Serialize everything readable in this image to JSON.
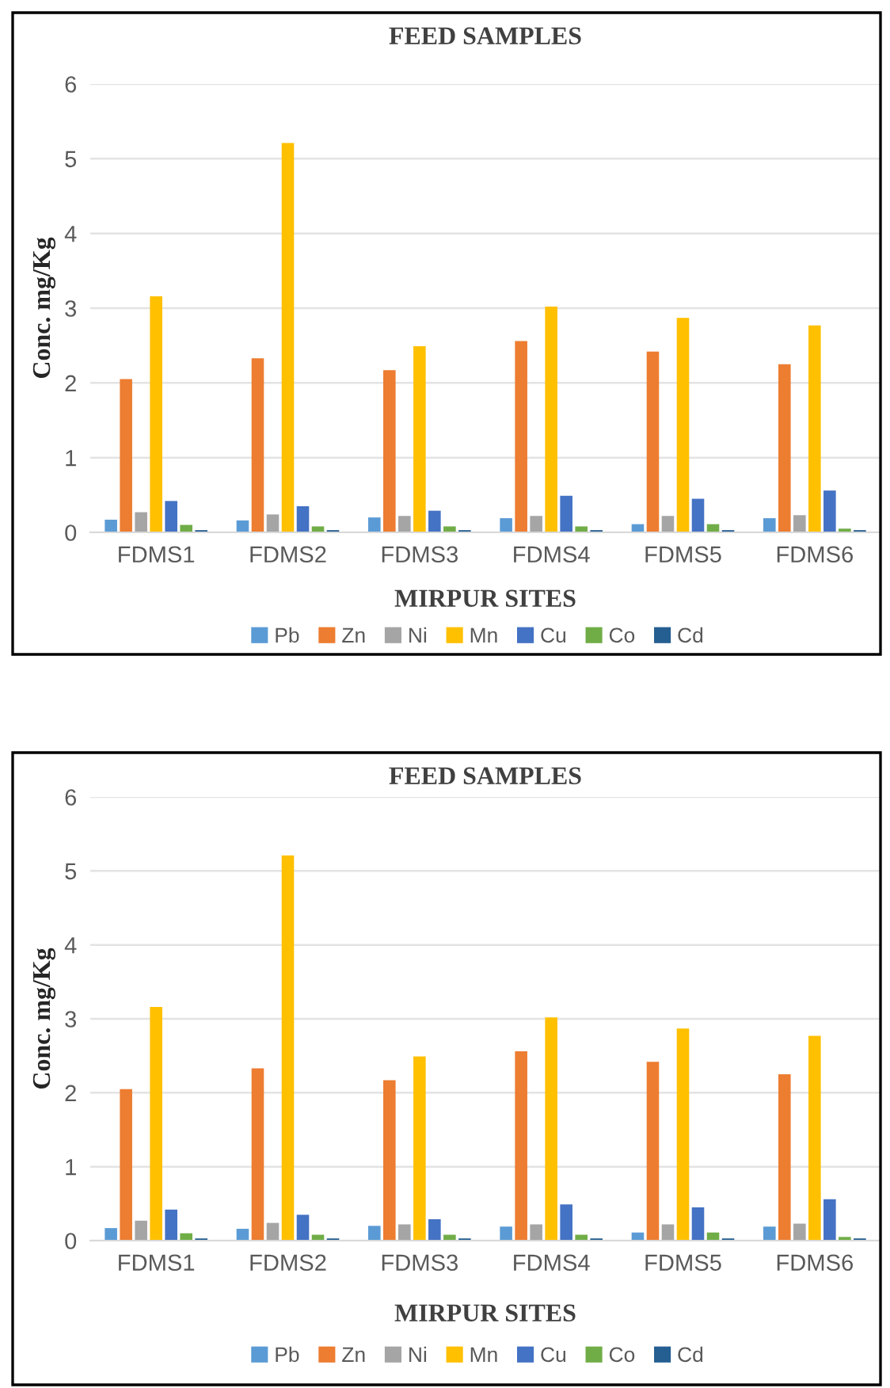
{
  "chart_data": [
    {
      "type": "bar",
      "title": "FEED SAMPLES",
      "xlabel": "MIRPUR SITES",
      "ylabel": "Conc. mg/Kg",
      "categories": [
        "FDMS1",
        "FDMS2",
        "FDMS3",
        "FDMS4",
        "FDMS5",
        "FDMS6"
      ],
      "series": [
        {
          "name": "Pb",
          "color": "#5b9bd5",
          "values": [
            0.17,
            0.16,
            0.2,
            0.19,
            0.11,
            0.19
          ]
        },
        {
          "name": "Zn",
          "color": "#ed7d31",
          "values": [
            2.05,
            2.33,
            2.17,
            2.56,
            2.42,
            2.25
          ]
        },
        {
          "name": "Ni",
          "color": "#a5a5a5",
          "values": [
            0.27,
            0.24,
            0.22,
            0.22,
            0.22,
            0.23
          ]
        },
        {
          "name": "Mn",
          "color": "#ffc000",
          "values": [
            3.16,
            5.21,
            2.49,
            3.02,
            2.87,
            2.77
          ]
        },
        {
          "name": "Cu",
          "color": "#4472c4",
          "values": [
            0.42,
            0.35,
            0.29,
            0.49,
            0.45,
            0.56
          ]
        },
        {
          "name": "Co",
          "color": "#70ad47",
          "values": [
            0.1,
            0.08,
            0.08,
            0.08,
            0.11,
            0.05
          ]
        },
        {
          "name": "Cd",
          "color": "#255e91",
          "values": [
            0.03,
            0.03,
            0.03,
            0.03,
            0.03,
            0.03
          ]
        }
      ],
      "ylim": [
        0,
        6
      ],
      "yticks": [
        0,
        1,
        2,
        3,
        4,
        5,
        6
      ],
      "grid": "y",
      "legend": "bottom"
    },
    {
      "type": "bar",
      "title": "FEED SAMPLES",
      "xlabel": "MIRPUR SITES",
      "ylabel": "Conc. mg/Kg",
      "categories": [
        "FDMS1",
        "FDMS2",
        "FDMS3",
        "FDMS4",
        "FDMS5",
        "FDMS6"
      ],
      "series": [
        {
          "name": "Pb",
          "color": "#5b9bd5",
          "values": [
            0.17,
            0.16,
            0.2,
            0.19,
            0.11,
            0.19
          ]
        },
        {
          "name": "Zn",
          "color": "#ed7d31",
          "values": [
            2.05,
            2.33,
            2.17,
            2.56,
            2.42,
            2.25
          ]
        },
        {
          "name": "Ni",
          "color": "#a5a5a5",
          "values": [
            0.27,
            0.24,
            0.22,
            0.22,
            0.22,
            0.23
          ]
        },
        {
          "name": "Mn",
          "color": "#ffc000",
          "values": [
            3.16,
            5.21,
            2.49,
            3.02,
            2.87,
            2.77
          ]
        },
        {
          "name": "Cu",
          "color": "#4472c4",
          "values": [
            0.42,
            0.35,
            0.29,
            0.49,
            0.45,
            0.56
          ]
        },
        {
          "name": "Co",
          "color": "#70ad47",
          "values": [
            0.1,
            0.08,
            0.08,
            0.08,
            0.11,
            0.05
          ]
        },
        {
          "name": "Cd",
          "color": "#255e91",
          "values": [
            0.03,
            0.03,
            0.03,
            0.03,
            0.03,
            0.03
          ]
        }
      ],
      "ylim": [
        0,
        6
      ],
      "yticks": [
        0,
        1,
        2,
        3,
        4,
        5,
        6
      ],
      "grid": "y",
      "legend": "bottom"
    }
  ]
}
